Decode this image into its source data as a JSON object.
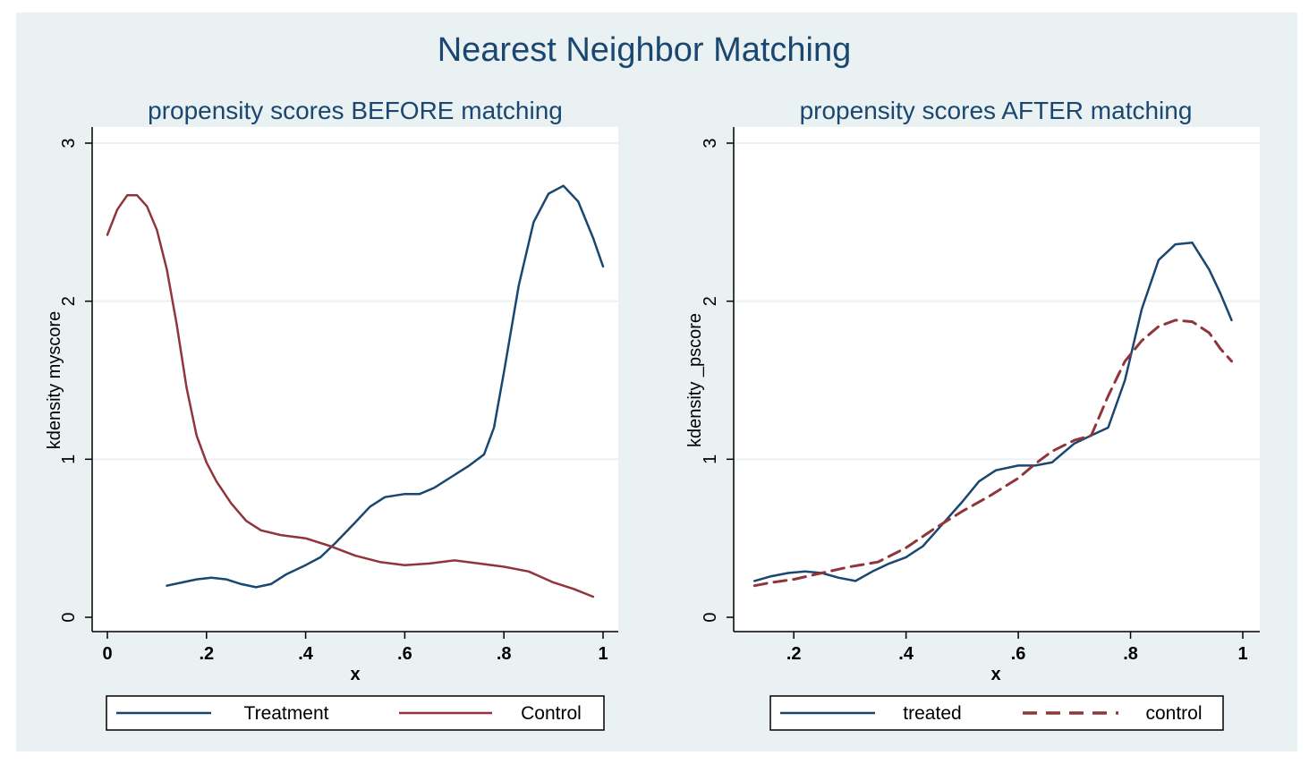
{
  "figure": {
    "title": "Nearest Neighbor Matching"
  },
  "chart_data": [
    {
      "type": "line",
      "title": "propensity scores BEFORE matching",
      "xlabel": "x",
      "ylabel": "kdensity myscore",
      "xlim": [
        0,
        1
      ],
      "ylim": [
        0,
        3
      ],
      "xticks": [
        0,
        0.2,
        0.4,
        0.6,
        0.8,
        1
      ],
      "xtick_labels": [
        "0",
        ".2",
        ".4",
        ".6",
        ".8",
        "1"
      ],
      "yticks": [
        0,
        1,
        2,
        3
      ],
      "ytick_labels": [
        "0",
        "1",
        "2",
        "3"
      ],
      "grid": true,
      "legend_position": "bottom",
      "series": [
        {
          "name": "Treatment",
          "color": "#1a476f",
          "dash": "solid",
          "x": [
            0.12,
            0.15,
            0.18,
            0.21,
            0.24,
            0.27,
            0.3,
            0.33,
            0.36,
            0.4,
            0.43,
            0.46,
            0.5,
            0.53,
            0.56,
            0.6,
            0.63,
            0.66,
            0.7,
            0.73,
            0.76,
            0.78,
            0.8,
            0.83,
            0.86,
            0.89,
            0.92,
            0.95,
            0.98,
            1.0
          ],
          "y": [
            0.2,
            0.22,
            0.24,
            0.25,
            0.24,
            0.21,
            0.19,
            0.21,
            0.27,
            0.33,
            0.38,
            0.47,
            0.6,
            0.7,
            0.76,
            0.78,
            0.78,
            0.82,
            0.9,
            0.96,
            1.03,
            1.2,
            1.55,
            2.1,
            2.5,
            2.68,
            2.73,
            2.63,
            2.4,
            2.22
          ]
        },
        {
          "name": "Control",
          "color": "#90353b",
          "dash": "solid",
          "x": [
            0.0,
            0.02,
            0.04,
            0.06,
            0.08,
            0.1,
            0.12,
            0.14,
            0.16,
            0.18,
            0.2,
            0.22,
            0.25,
            0.28,
            0.31,
            0.35,
            0.4,
            0.45,
            0.5,
            0.55,
            0.6,
            0.65,
            0.7,
            0.75,
            0.8,
            0.85,
            0.9,
            0.94,
            0.98
          ],
          "y": [
            2.42,
            2.58,
            2.67,
            2.67,
            2.6,
            2.45,
            2.2,
            1.85,
            1.45,
            1.15,
            0.98,
            0.86,
            0.72,
            0.61,
            0.55,
            0.52,
            0.5,
            0.45,
            0.39,
            0.35,
            0.33,
            0.34,
            0.36,
            0.34,
            0.32,
            0.29,
            0.22,
            0.18,
            0.13
          ]
        }
      ]
    },
    {
      "type": "line",
      "title": "propensity scores AFTER matching",
      "xlabel": "x",
      "ylabel": "kdensity _pscore",
      "xlim": [
        0.12,
        1
      ],
      "ylim": [
        0,
        3
      ],
      "xticks": [
        0.2,
        0.4,
        0.6,
        0.8,
        1
      ],
      "xtick_labels": [
        ".2",
        ".4",
        ".6",
        ".8",
        "1"
      ],
      "yticks": [
        0,
        1,
        2,
        3
      ],
      "ytick_labels": [
        "0",
        "1",
        "2",
        "3"
      ],
      "grid": true,
      "legend_position": "bottom",
      "series": [
        {
          "name": "treated",
          "color": "#1a476f",
          "dash": "solid",
          "x": [
            0.13,
            0.16,
            0.19,
            0.22,
            0.25,
            0.28,
            0.31,
            0.34,
            0.37,
            0.4,
            0.43,
            0.46,
            0.5,
            0.53,
            0.56,
            0.6,
            0.63,
            0.66,
            0.7,
            0.73,
            0.76,
            0.79,
            0.82,
            0.85,
            0.88,
            0.91,
            0.94,
            0.96,
            0.98
          ],
          "y": [
            0.23,
            0.26,
            0.28,
            0.29,
            0.28,
            0.25,
            0.23,
            0.29,
            0.34,
            0.38,
            0.45,
            0.57,
            0.73,
            0.86,
            0.93,
            0.96,
            0.96,
            0.98,
            1.1,
            1.15,
            1.2,
            1.5,
            1.95,
            2.26,
            2.36,
            2.37,
            2.2,
            2.05,
            1.88
          ]
        },
        {
          "name": "control",
          "color": "#90353b",
          "dash": "dashed",
          "x": [
            0.13,
            0.16,
            0.2,
            0.25,
            0.3,
            0.35,
            0.4,
            0.45,
            0.5,
            0.55,
            0.6,
            0.63,
            0.66,
            0.7,
            0.73,
            0.76,
            0.79,
            0.82,
            0.85,
            0.88,
            0.91,
            0.94,
            0.96,
            0.98
          ],
          "y": [
            0.2,
            0.22,
            0.24,
            0.28,
            0.32,
            0.35,
            0.44,
            0.56,
            0.67,
            0.77,
            0.88,
            0.97,
            1.05,
            1.12,
            1.15,
            1.4,
            1.62,
            1.75,
            1.84,
            1.88,
            1.87,
            1.8,
            1.7,
            1.62
          ]
        }
      ]
    }
  ]
}
